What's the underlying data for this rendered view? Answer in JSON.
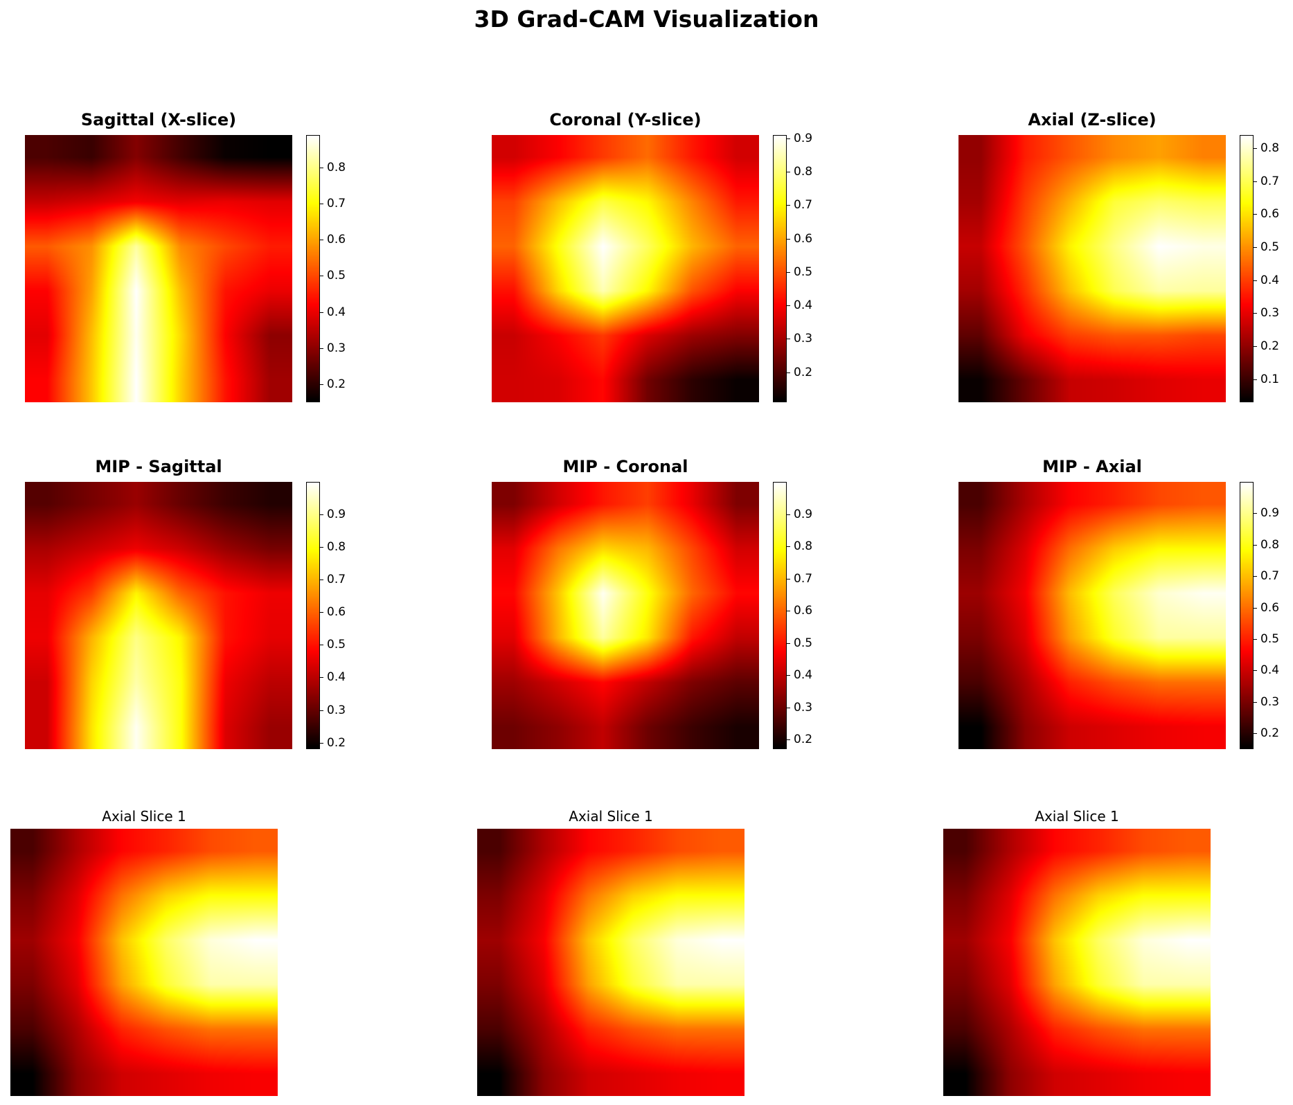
{
  "chart_data": {
    "type": "heatmap",
    "title": "3D Grad-CAM Visualization",
    "colormap": "hot",
    "panels": [
      {
        "title": "Sagittal (X-slice)",
        "title_weight": "bold",
        "grid": [
          [
            0.23,
            0.21,
            0.29,
            0.22,
            0.16,
            0.15
          ],
          [
            0.36,
            0.38,
            0.41,
            0.39,
            0.4,
            0.39
          ],
          [
            0.52,
            0.58,
            0.82,
            0.57,
            0.5,
            0.45
          ],
          [
            0.42,
            0.6,
            0.89,
            0.63,
            0.44,
            0.4
          ],
          [
            0.39,
            0.63,
            0.88,
            0.66,
            0.42,
            0.3
          ],
          [
            0.42,
            0.64,
            0.89,
            0.65,
            0.44,
            0.32
          ]
        ],
        "colorbar": {
          "min": 0.15,
          "max": 0.89,
          "ticks": [
            "0.2",
            "0.3",
            "0.4",
            "0.5",
            "0.6",
            "0.7",
            "0.8"
          ]
        }
      },
      {
        "title": "Coronal (Y-slice)",
        "title_weight": "bold",
        "grid": [
          [
            0.35,
            0.4,
            0.47,
            0.53,
            0.43,
            0.35
          ],
          [
            0.48,
            0.63,
            0.76,
            0.7,
            0.56,
            0.43
          ],
          [
            0.52,
            0.72,
            0.91,
            0.78,
            0.62,
            0.52
          ],
          [
            0.42,
            0.66,
            0.85,
            0.7,
            0.5,
            0.4
          ],
          [
            0.34,
            0.4,
            0.47,
            0.36,
            0.29,
            0.26
          ],
          [
            0.35,
            0.36,
            0.41,
            0.24,
            0.16,
            0.12
          ]
        ],
        "colorbar": {
          "min": 0.11,
          "max": 0.91,
          "ticks": [
            "0.2",
            "0.3",
            "0.4",
            "0.5",
            "0.6",
            "0.7",
            "0.8",
            "0.9"
          ]
        }
      },
      {
        "title": "Axial (Z-slice)",
        "title_weight": "bold",
        "grid": [
          [
            0.2,
            0.36,
            0.43,
            0.49,
            0.52,
            0.48
          ],
          [
            0.22,
            0.4,
            0.54,
            0.68,
            0.72,
            0.7
          ],
          [
            0.26,
            0.43,
            0.62,
            0.74,
            0.84,
            0.82
          ],
          [
            0.22,
            0.38,
            0.56,
            0.7,
            0.77,
            0.76
          ],
          [
            0.14,
            0.31,
            0.4,
            0.43,
            0.43,
            0.41
          ],
          [
            0.04,
            0.15,
            0.26,
            0.27,
            0.29,
            0.3
          ]
        ],
        "colorbar": {
          "min": 0.03,
          "max": 0.84,
          "ticks": [
            "0.1",
            "0.2",
            "0.3",
            "0.4",
            "0.5",
            "0.6",
            "0.7",
            "0.8"
          ]
        }
      },
      {
        "title": "MIP - Sagittal",
        "title_weight": "bold",
        "grid": [
          [
            0.28,
            0.32,
            0.36,
            0.3,
            0.25,
            0.22
          ],
          [
            0.38,
            0.42,
            0.46,
            0.42,
            0.36,
            0.32
          ],
          [
            0.45,
            0.55,
            0.78,
            0.6,
            0.5,
            0.46
          ],
          [
            0.46,
            0.7,
            0.9,
            0.78,
            0.5,
            0.45
          ],
          [
            0.42,
            0.74,
            0.93,
            0.8,
            0.46,
            0.4
          ],
          [
            0.42,
            0.76,
            0.99,
            0.8,
            0.44,
            0.36
          ]
        ],
        "colorbar": {
          "min": 0.18,
          "max": 1.0,
          "ticks": [
            "0.2",
            "0.3",
            "0.4",
            "0.5",
            "0.6",
            "0.7",
            "0.8",
            "0.9"
          ]
        }
      },
      {
        "title": "MIP - Coronal",
        "title_weight": "bold",
        "grid": [
          [
            0.32,
            0.42,
            0.5,
            0.55,
            0.45,
            0.32
          ],
          [
            0.44,
            0.62,
            0.74,
            0.7,
            0.56,
            0.42
          ],
          [
            0.48,
            0.72,
            0.99,
            0.8,
            0.6,
            0.48
          ],
          [
            0.44,
            0.7,
            0.92,
            0.76,
            0.5,
            0.4
          ],
          [
            0.36,
            0.42,
            0.48,
            0.4,
            0.32,
            0.28
          ],
          [
            0.3,
            0.34,
            0.4,
            0.3,
            0.24,
            0.2
          ]
        ],
        "colorbar": {
          "min": 0.17,
          "max": 1.0,
          "ticks": [
            "0.2",
            "0.3",
            "0.4",
            "0.5",
            "0.6",
            "0.7",
            "0.8",
            "0.9"
          ]
        }
      },
      {
        "title": "MIP - Axial",
        "title_weight": "bold",
        "grid": [
          [
            0.24,
            0.36,
            0.46,
            0.5,
            0.55,
            0.57
          ],
          [
            0.3,
            0.42,
            0.6,
            0.72,
            0.78,
            0.78
          ],
          [
            0.34,
            0.45,
            0.7,
            0.86,
            0.96,
            0.99
          ],
          [
            0.3,
            0.42,
            0.66,
            0.82,
            0.92,
            0.92
          ],
          [
            0.24,
            0.36,
            0.5,
            0.56,
            0.6,
            0.6
          ],
          [
            0.15,
            0.32,
            0.4,
            0.42,
            0.44,
            0.45
          ]
        ],
        "colorbar": {
          "min": 0.15,
          "max": 1.0,
          "ticks": [
            "0.2",
            "0.3",
            "0.4",
            "0.5",
            "0.6",
            "0.7",
            "0.8",
            "0.9"
          ]
        }
      },
      {
        "title": "Axial Slice 1",
        "title_weight": "normal",
        "grid": [
          [
            0.24,
            0.36,
            0.46,
            0.5,
            0.55,
            0.57
          ],
          [
            0.3,
            0.42,
            0.6,
            0.72,
            0.78,
            0.78
          ],
          [
            0.34,
            0.45,
            0.7,
            0.86,
            0.96,
            0.99
          ],
          [
            0.3,
            0.42,
            0.66,
            0.82,
            0.92,
            0.92
          ],
          [
            0.24,
            0.36,
            0.5,
            0.56,
            0.6,
            0.6
          ],
          [
            0.15,
            0.32,
            0.4,
            0.42,
            0.44,
            0.45
          ]
        ],
        "colorbar": null
      },
      {
        "title": "Axial Slice 1",
        "title_weight": "normal",
        "grid": [
          [
            0.24,
            0.36,
            0.46,
            0.5,
            0.55,
            0.57
          ],
          [
            0.3,
            0.42,
            0.6,
            0.72,
            0.78,
            0.78
          ],
          [
            0.34,
            0.45,
            0.7,
            0.86,
            0.96,
            0.99
          ],
          [
            0.3,
            0.42,
            0.66,
            0.82,
            0.92,
            0.92
          ],
          [
            0.24,
            0.36,
            0.5,
            0.56,
            0.6,
            0.6
          ],
          [
            0.15,
            0.32,
            0.4,
            0.42,
            0.44,
            0.45
          ]
        ],
        "colorbar": null
      },
      {
        "title": "Axial Slice 1",
        "title_weight": "normal",
        "grid": [
          [
            0.24,
            0.36,
            0.46,
            0.5,
            0.55,
            0.57
          ],
          [
            0.3,
            0.42,
            0.6,
            0.72,
            0.78,
            0.78
          ],
          [
            0.34,
            0.45,
            0.7,
            0.86,
            0.96,
            0.99
          ],
          [
            0.3,
            0.42,
            0.66,
            0.82,
            0.92,
            0.92
          ],
          [
            0.24,
            0.36,
            0.5,
            0.56,
            0.6,
            0.6
          ],
          [
            0.15,
            0.32,
            0.4,
            0.42,
            0.44,
            0.45
          ]
        ],
        "colorbar": null
      }
    ]
  }
}
